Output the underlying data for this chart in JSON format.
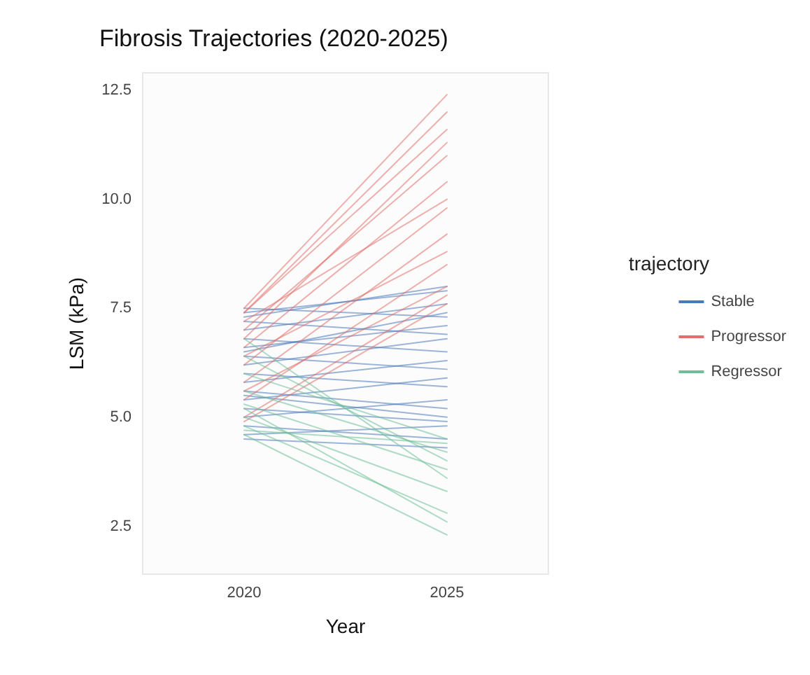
{
  "chart_data": {
    "type": "line",
    "title": "Fibrosis Trajectories (2020-2025)",
    "xlabel": "Year",
    "ylabel": "LSM (kPa)",
    "legend_title": "trajectory",
    "categories": [
      "2020",
      "2025"
    ],
    "ylim": [
      1.4,
      12.9
    ],
    "yticks": [
      2.5,
      {
        "value": 5,
        "label": "5.0"
      },
      7.5,
      {
        "value": 10,
        "label": "10.0"
      },
      12.5
    ],
    "grid": false,
    "legend": "right",
    "marker": "none",
    "line_style": "solid",
    "series": [
      {
        "name": "Stable",
        "color": "#4a78b8",
        "values": [
          4.6,
          4.8
        ]
      },
      {
        "color": "#4a78b8",
        "values": [
          4.8,
          4.5
        ]
      },
      {
        "color": "#4a78b8",
        "values": [
          5.0,
          5.4
        ]
      },
      {
        "color": "#4a78b8",
        "values": [
          5.2,
          4.9
        ]
      },
      {
        "color": "#4a78b8",
        "values": [
          5.4,
          5.9
        ]
      },
      {
        "color": "#4a78b8",
        "values": [
          5.6,
          5.2
        ]
      },
      {
        "color": "#4a78b8",
        "values": [
          5.8,
          6.3
        ]
      },
      {
        "color": "#4a78b8",
        "values": [
          6.0,
          5.7
        ]
      },
      {
        "color": "#4a78b8",
        "values": [
          6.2,
          6.8
        ]
      },
      {
        "color": "#4a78b8",
        "values": [
          6.4,
          6.1
        ]
      },
      {
        "color": "#4a78b8",
        "values": [
          6.6,
          7.1
        ]
      },
      {
        "color": "#4a78b8",
        "values": [
          6.8,
          6.5
        ]
      },
      {
        "color": "#4a78b8",
        "values": [
          7.0,
          7.6
        ]
      },
      {
        "color": "#4a78b8",
        "values": [
          7.2,
          6.9
        ]
      },
      {
        "color": "#4a78b8",
        "values": [
          7.4,
          7.9
        ]
      },
      {
        "color": "#4a78b8",
        "values": [
          7.5,
          7.3
        ]
      },
      {
        "color": "#4a78b8",
        "values": [
          4.5,
          4.3
        ]
      },
      {
        "color": "#4a78b8",
        "values": [
          5.5,
          5.0
        ]
      },
      {
        "color": "#4a78b8",
        "values": [
          6.5,
          7.4
        ]
      },
      {
        "color": "#4a78b8",
        "values": [
          7.3,
          8.0
        ]
      },
      {
        "name": "Progressor",
        "color": "#e0706a",
        "values": [
          5.0,
          7.8
        ]
      },
      {
        "color": "#e0706a",
        "values": [
          5.4,
          8.5
        ]
      },
      {
        "color": "#e0706a",
        "values": [
          5.8,
          9.2
        ]
      },
      {
        "color": "#e0706a",
        "values": [
          6.2,
          9.8
        ]
      },
      {
        "color": "#e0706a",
        "values": [
          6.6,
          10.4
        ]
      },
      {
        "color": "#e0706a",
        "values": [
          7.0,
          11.0
        ]
      },
      {
        "color": "#e0706a",
        "values": [
          7.4,
          11.6
        ]
      },
      {
        "color": "#e0706a",
        "values": [
          7.5,
          12.4
        ]
      },
      {
        "color": "#e0706a",
        "values": [
          6.8,
          11.3
        ]
      },
      {
        "color": "#e0706a",
        "values": [
          5.6,
          8.0
        ]
      },
      {
        "color": "#e0706a",
        "values": [
          6.4,
          8.8
        ]
      },
      {
        "color": "#e0706a",
        "values": [
          7.2,
          10.0
        ]
      },
      {
        "color": "#e0706a",
        "values": [
          4.9,
          7.6
        ]
      },
      {
        "color": "#e0706a",
        "values": [
          7.4,
          12.0
        ]
      },
      {
        "name": "Regressor",
        "color": "#6cbf98",
        "values": [
          4.6,
          2.3
        ]
      },
      {
        "color": "#6cbf98",
        "values": [
          4.8,
          2.8
        ]
      },
      {
        "color": "#6cbf98",
        "values": [
          5.0,
          3.3
        ]
      },
      {
        "color": "#6cbf98",
        "values": [
          5.3,
          3.8
        ]
      },
      {
        "color": "#6cbf98",
        "values": [
          5.6,
          4.2
        ]
      },
      {
        "color": "#6cbf98",
        "values": [
          6.0,
          4.5
        ]
      },
      {
        "color": "#6cbf98",
        "values": [
          6.4,
          4.0
        ]
      },
      {
        "color": "#6cbf98",
        "values": [
          6.8,
          3.6
        ]
      },
      {
        "color": "#6cbf98",
        "values": [
          5.2,
          2.6
        ]
      },
      {
        "color": "#6cbf98",
        "values": [
          4.7,
          4.4
        ]
      }
    ]
  }
}
